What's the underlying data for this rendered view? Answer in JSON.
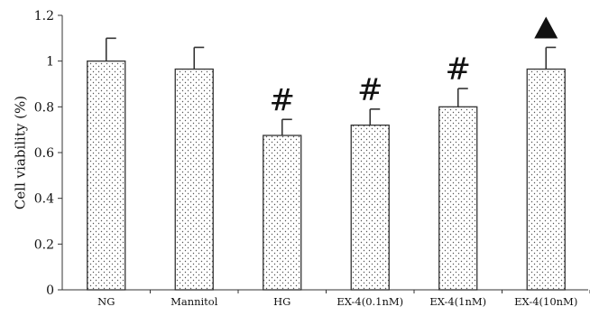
{
  "chart_data": {
    "type": "bar",
    "categories": [
      "NG",
      "Mannitol",
      "HG",
      "EX-4(0.1nM)",
      "EX-4(1nM)",
      "EX-4(10nM)"
    ],
    "values": [
      1.0,
      0.965,
      0.675,
      0.72,
      0.8,
      0.965
    ],
    "error": [
      0.1,
      0.095,
      0.07,
      0.07,
      0.08,
      0.095
    ],
    "annotations": [
      "",
      "",
      "#",
      "#",
      "#",
      "▲"
    ],
    "ylabel": "Cell viability (%)",
    "xlabel": "",
    "title": "",
    "ylim": [
      0,
      1.2
    ],
    "yticks": [
      "0",
      "0.2",
      "0.4",
      "0.6",
      "0.8",
      "1",
      "1.2"
    ],
    "grid": false,
    "bar_fill": "dotted",
    "colors": {
      "bar_edge": "#333333",
      "dot": "#555555",
      "axis": "#333333",
      "marker": "#111111"
    }
  }
}
